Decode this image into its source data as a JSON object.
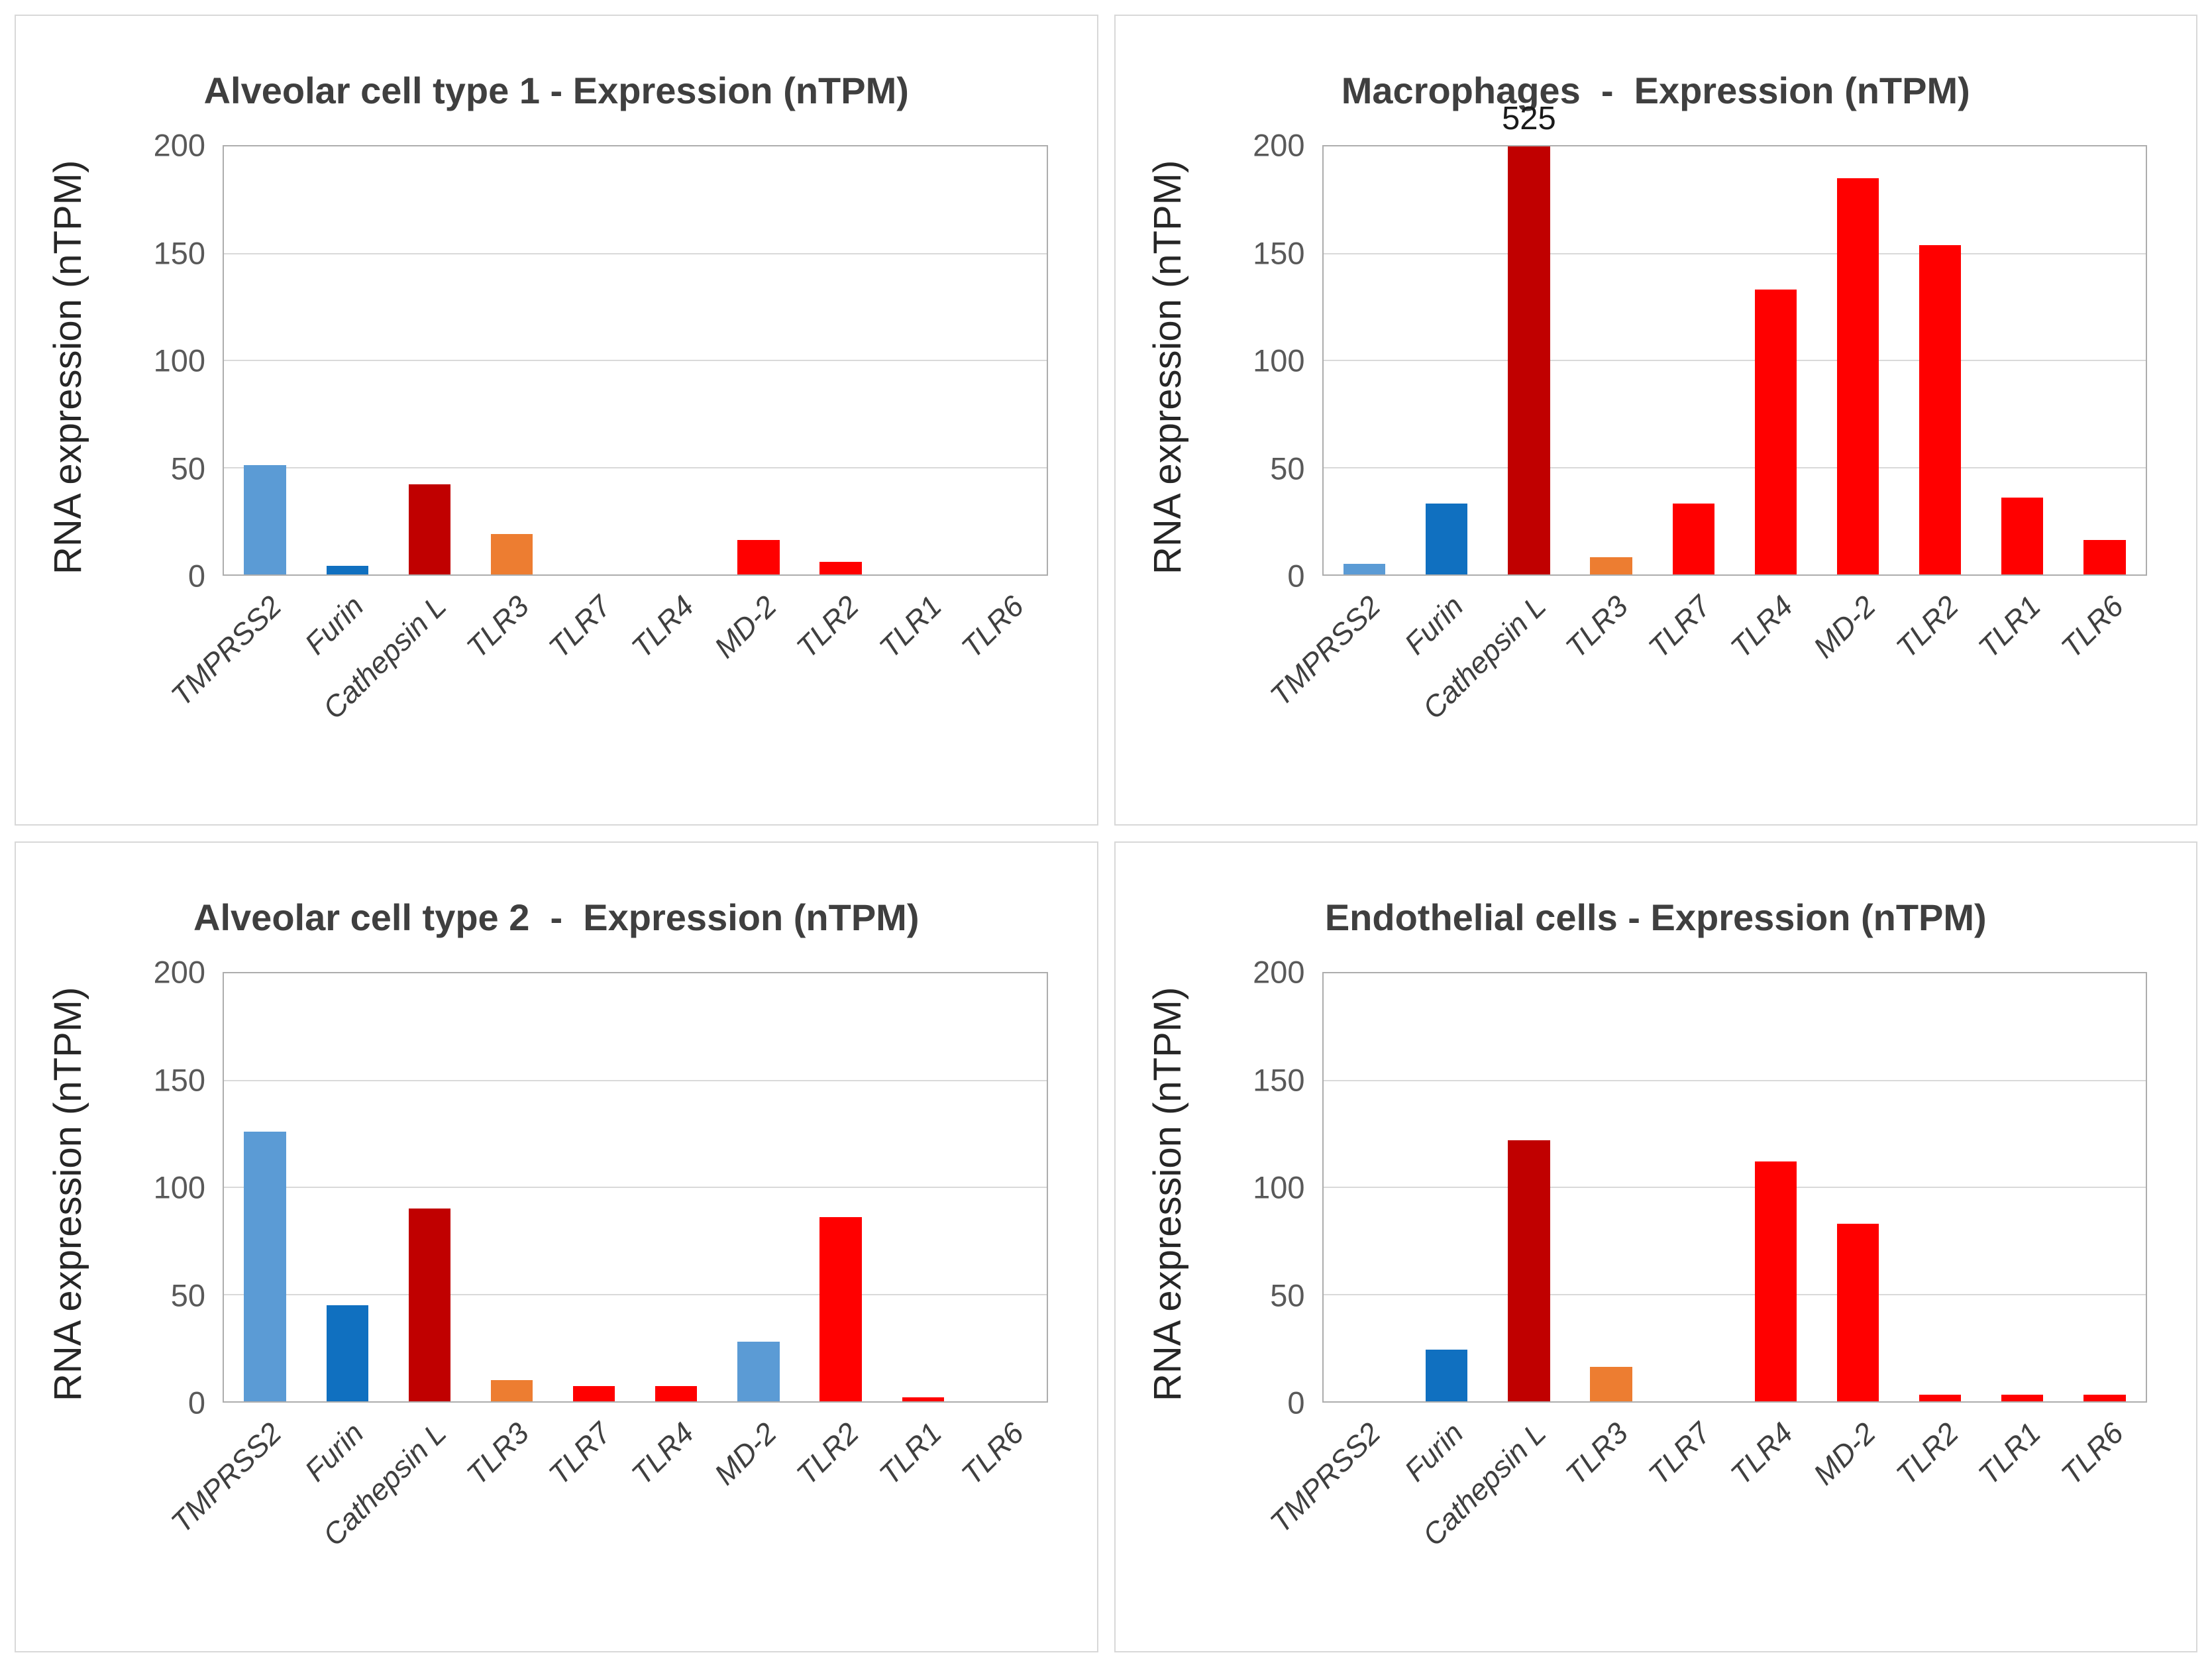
{
  "figure": {
    "ylabel": "RNA expression (nTPM)",
    "ymax": 200,
    "yticks": [
      0,
      50,
      100,
      150,
      200
    ],
    "categories": [
      "TMPRSS2",
      "Furin",
      "Cathepsin L",
      "TLR3",
      "TLR7",
      "TLR4",
      "MD-2",
      "TLR2",
      "TLR1",
      "TLR6"
    ]
  },
  "palette": {
    "lightblue": "#5B9BD5",
    "blue": "#1070C0",
    "darkred": "#C00000",
    "orange": "#ED7D31",
    "red": "#FF0000"
  },
  "chart_data": [
    {
      "type": "bar",
      "title_bold": "Alveolar cell type 1",
      "title_rest": " - Expression (nTPM)",
      "ylabel": "RNA expression (nTPM)",
      "ylim": [
        0,
        200
      ],
      "yticks": [
        0,
        50,
        100,
        150,
        200
      ],
      "grid": true,
      "categories": [
        "TMPRSS2",
        "Furin",
        "Cathepsin L",
        "TLR3",
        "TLR7",
        "TLR4",
        "MD-2",
        "TLR2",
        "TLR1",
        "TLR6"
      ],
      "values": [
        51,
        4,
        42,
        19,
        0,
        0,
        16,
        6,
        0,
        0
      ],
      "colors": [
        "lightblue",
        "blue",
        "darkred",
        "orange",
        "red",
        "red",
        "red",
        "red",
        "red",
        "red"
      ]
    },
    {
      "type": "bar",
      "title_bold": "Macrophages",
      "title_rest": "  -  Expression (nTPM)",
      "ylabel": "RNA expression (nTPM)",
      "ylim": [
        0,
        200
      ],
      "yticks": [
        0,
        50,
        100,
        150,
        200
      ],
      "grid": true,
      "categories": [
        "TMPRSS2",
        "Furin",
        "Cathepsin L",
        "TLR3",
        "TLR7",
        "TLR4",
        "MD-2",
        "TLR2",
        "TLR1",
        "TLR6"
      ],
      "values": [
        5,
        33,
        525,
        8,
        33,
        133,
        185,
        154,
        36,
        16
      ],
      "colors": [
        "lightblue",
        "blue",
        "darkred",
        "orange",
        "red",
        "red",
        "red",
        "red",
        "red",
        "red"
      ],
      "clipped_label": {
        "index": 2,
        "text": "525"
      }
    },
    {
      "type": "bar",
      "title_bold": "Alveolar cell type 2",
      "title_rest": "  -  Expression (nTPM)",
      "ylabel": "RNA expression (nTPM)",
      "ylim": [
        0,
        200
      ],
      "yticks": [
        0,
        50,
        100,
        150,
        200
      ],
      "grid": true,
      "categories": [
        "TMPRSS2",
        "Furin",
        "Cathepsin L",
        "TLR3",
        "TLR7",
        "TLR4",
        "MD-2",
        "TLR2",
        "TLR1",
        "TLR6"
      ],
      "values": [
        126,
        45,
        90,
        10,
        7,
        7,
        28,
        86,
        2,
        0
      ],
      "colors": [
        "lightblue",
        "blue",
        "darkred",
        "orange",
        "red",
        "red",
        "lightblue",
        "red",
        "red",
        "red"
      ]
    },
    {
      "type": "bar",
      "title_bold": "Endothelial cells",
      "title_rest": " - Expression (nTPM)",
      "ylabel": "RNA expression (nTPM)",
      "ylim": [
        0,
        200
      ],
      "yticks": [
        0,
        50,
        100,
        150,
        200
      ],
      "grid": true,
      "categories": [
        "TMPRSS2",
        "Furin",
        "Cathepsin L",
        "TLR3",
        "TLR7",
        "TLR4",
        "MD-2",
        "TLR2",
        "TLR1",
        "TLR6"
      ],
      "values": [
        0,
        24,
        122,
        16,
        0,
        112,
        83,
        3,
        3,
        3
      ],
      "colors": [
        "lightblue",
        "blue",
        "darkred",
        "orange",
        "red",
        "red",
        "red",
        "red",
        "red",
        "red"
      ]
    }
  ]
}
